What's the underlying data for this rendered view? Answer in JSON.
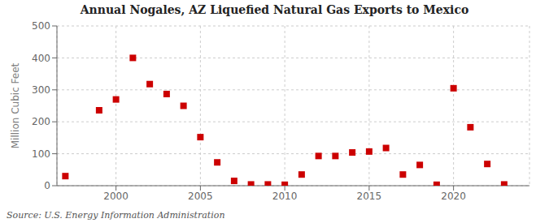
{
  "chart_data": {
    "type": "scatter",
    "title": "Annual Nogales, AZ Liquefied Natural Gas Exports to Mexico",
    "y_label": "Million Cubic Feet",
    "annotations": [
      "Source: U.S. Energy Information Administration"
    ],
    "x": [
      1997,
      1999,
      2000,
      2001,
      2002,
      2003,
      2004,
      2005,
      2006,
      2007,
      2008,
      2009,
      2010,
      2011,
      2012,
      2013,
      2014,
      2015,
      2016,
      2017,
      2018,
      2019,
      2020,
      2021,
      2022,
      2023
    ],
    "values": [
      30,
      236,
      270,
      400,
      318,
      287,
      250,
      152,
      73,
      15,
      4,
      4,
      3,
      35,
      93,
      93,
      104,
      107,
      118,
      35,
      65,
      3,
      305,
      183,
      68,
      4
    ],
    "color": "#cc0000",
    "marker": "square",
    "xlim": [
      1996.5,
      2024.5
    ],
    "xticks": [
      2000,
      2005,
      2010,
      2015,
      2020
    ],
    "ylim": [
      0,
      500
    ],
    "yticks": [
      0,
      100,
      200,
      300,
      400,
      500
    ],
    "grid": true
  }
}
